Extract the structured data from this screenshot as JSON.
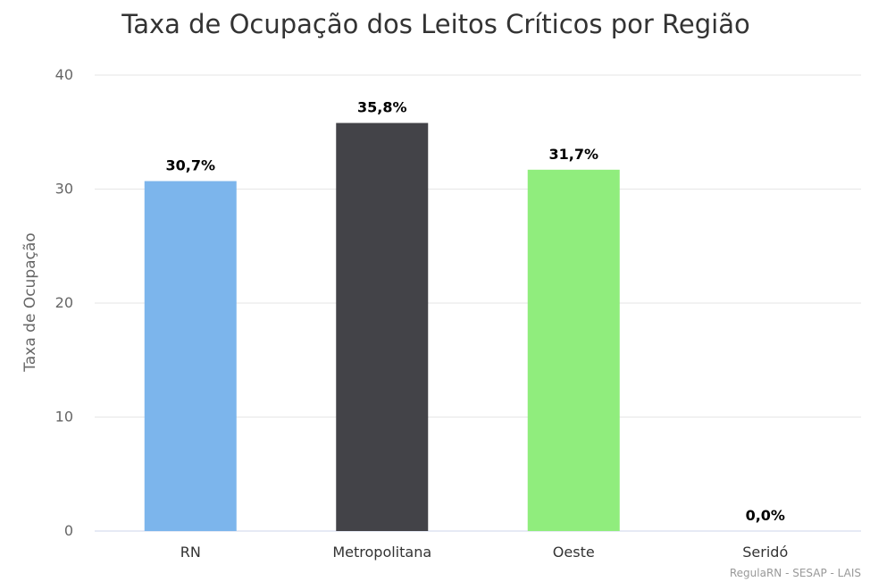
{
  "chart_data": {
    "type": "bar",
    "title": "Taxa de Ocupação dos Leitos Críticos por Região",
    "xlabel": "",
    "ylabel": "Taxa de Ocupação",
    "categories": [
      "RN",
      "Metropolitana",
      "Oeste",
      "Seridó"
    ],
    "values": [
      30.7,
      35.8,
      31.7,
      0.0
    ],
    "data_labels": [
      "30,7%",
      "35,8%",
      "31,7%",
      "0,0%"
    ],
    "colors": [
      "#7cb5ec",
      "#434348",
      "#90ed7d",
      "#f7a35c"
    ],
    "ylim": [
      0,
      40
    ],
    "yticks": [
      0,
      10,
      20,
      30,
      40
    ],
    "ytick_labels": [
      "0",
      "10",
      "20",
      "30",
      "40"
    ],
    "grid": true,
    "legend": "none"
  },
  "credits": "RegulaRN - SESAP - LAIS"
}
